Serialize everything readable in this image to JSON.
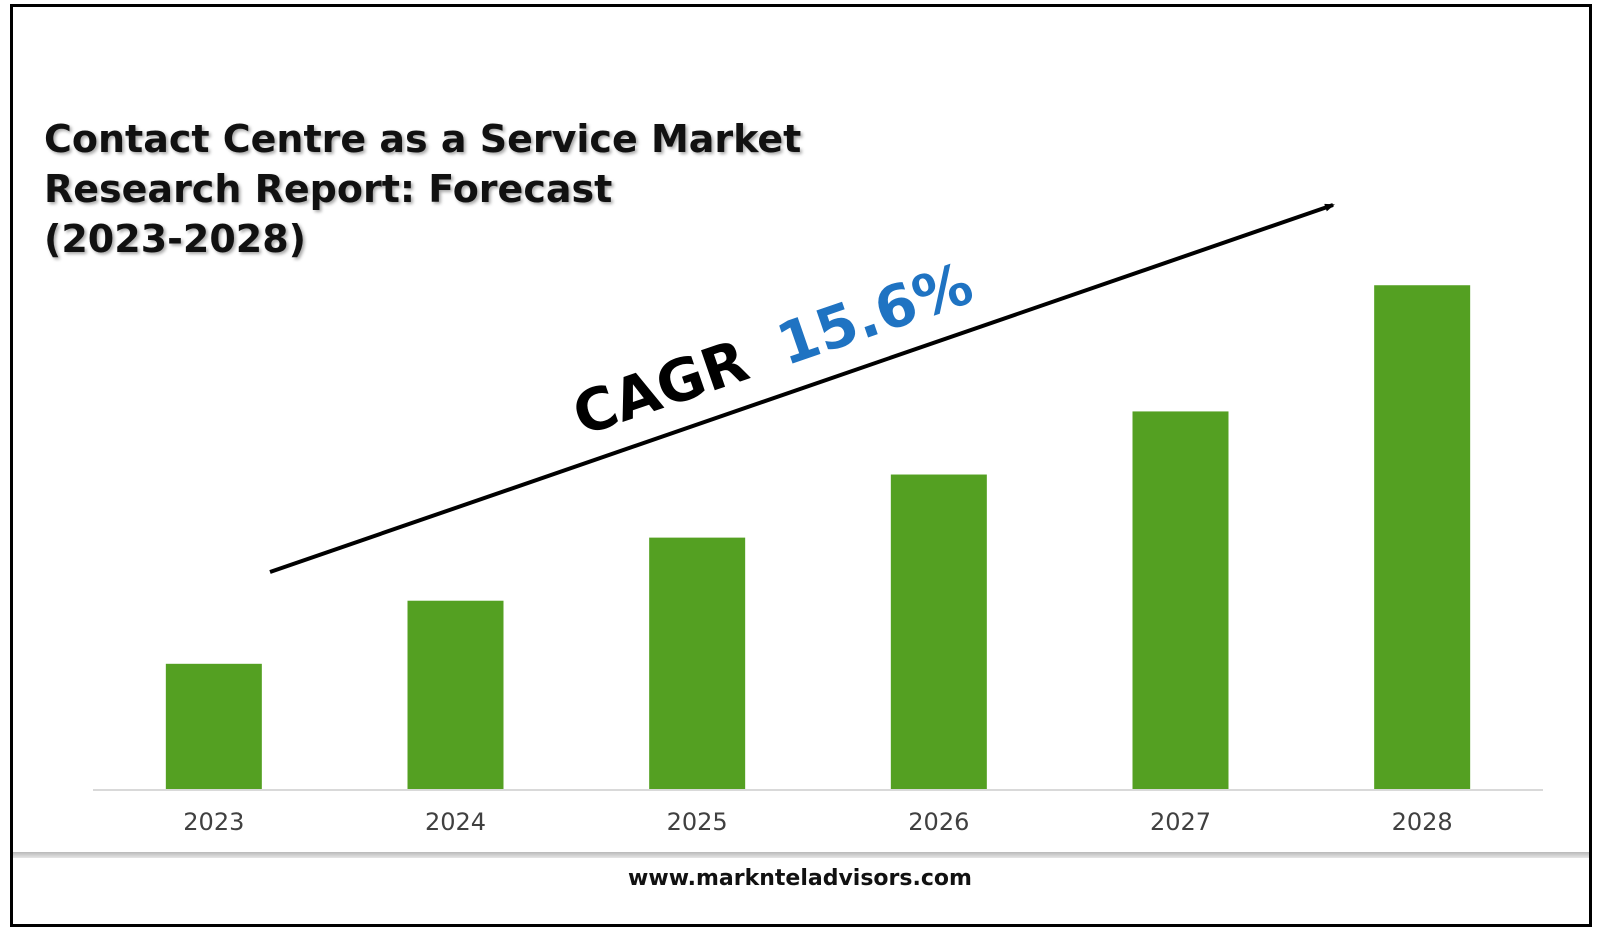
{
  "title": "Contact Centre as a Service Market\nResearch Report: Forecast\n(2023-2028)",
  "footer": {
    "website": "www.marknteladvisors.com"
  },
  "annotation": {
    "label": "CAGR",
    "value": "15.6%",
    "label_color": "#000000",
    "value_color": "#1f73c2"
  },
  "colors": {
    "bar": "#54a022",
    "axis": "#d9d9d9",
    "tick_text": "#404040"
  },
  "chart_data": {
    "type": "bar",
    "title": "Contact Centre as a Service Market Research Report: Forecast (2023-2028)",
    "categories": [
      "2023",
      "2024",
      "2025",
      "2026",
      "2027",
      "2028"
    ],
    "values": [
      1.0,
      1.5,
      2.0,
      2.5,
      3.0,
      4.0
    ],
    "ylim": [
      0,
      4.2
    ],
    "xlabel": "",
    "ylabel": "",
    "grid": false,
    "legend": "none",
    "note": "Values are relative heights; no numeric axis or data labels shown"
  }
}
